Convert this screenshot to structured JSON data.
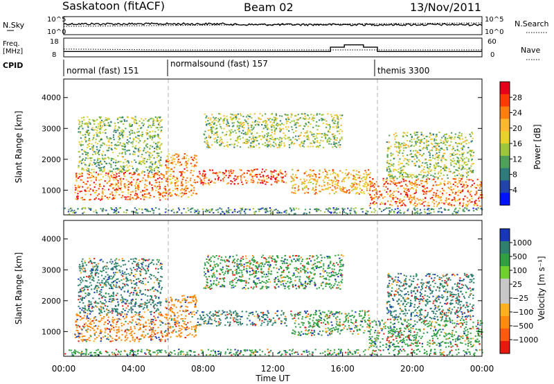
{
  "header": {
    "title": "Saskatoon (fitACF)",
    "beam": "Beam 02",
    "date": "13/Nov/2011"
  },
  "noise_panel": {
    "left_label": "N.Sky",
    "left_ticks": [
      "10^5",
      "10^0"
    ],
    "right_label": "N.Search",
    "right_ticks": [
      "10^5",
      "10^0"
    ]
  },
  "freq_panel": {
    "left_label_line1": "Freq.",
    "left_label_line2": "[MHz]",
    "left_ticks": [
      "18",
      "8"
    ],
    "right_label": "Nave",
    "right_ticks": [
      "60",
      "0"
    ]
  },
  "cpid": {
    "label": "CPID",
    "segments": [
      {
        "name": "normal (fast) 151",
        "start_hour": 0
      },
      {
        "name": "normalsound (fast) 157",
        "start_hour": 6
      },
      {
        "name": "themis 3300",
        "start_hour": 18
      }
    ]
  },
  "power_panel": {
    "ylabel": "Slant Range [km]",
    "colorbar_label": "Power [dB]",
    "colorbar_ticks": [
      "28",
      "24",
      "20",
      "16",
      "12",
      "8",
      "4"
    ],
    "colors": [
      "#e8001a",
      "#ff3a00",
      "#ff7e10",
      "#ffb830",
      "#e6d22a",
      "#9ec53c",
      "#4fa05a",
      "#2f7a7a",
      "#2244aa",
      "#0012ff"
    ]
  },
  "velocity_panel": {
    "ylabel": "Slant Range [km]",
    "colorbar_label": "Velocity [m s⁻¹]",
    "colorbar_ticks": [
      "1000",
      "500",
      "100",
      "25",
      "−25",
      "−100",
      "−500",
      "−1000"
    ],
    "colors": [
      "#1836b8",
      "#2f7f6f",
      "#2fa040",
      "#70d030",
      "#c8c8c8",
      "#c8c8c8",
      "#ffb020",
      "#ff8a10",
      "#ff5a10",
      "#e81a10"
    ]
  },
  "xaxis": {
    "label": "Time UT",
    "ticks": [
      "00:00",
      "04:00",
      "08:00",
      "12:00",
      "16:00",
      "20:00",
      "00:00"
    ]
  },
  "chart_data": {
    "type": "heatmap",
    "x_unit": "hours UT",
    "xlim": [
      0,
      24
    ],
    "ylim_km": [
      200,
      4600
    ],
    "y_ticks": [
      1000,
      2000,
      3000,
      4000
    ],
    "mode_change_hours": [
      6,
      18
    ],
    "freq_mhz": [
      [
        0,
        11.2
      ],
      [
        15.3,
        11.2
      ],
      [
        15.3,
        13.8
      ],
      [
        16.1,
        13.8
      ],
      [
        16.1,
        15.2
      ],
      [
        17.2,
        15.2
      ],
      [
        17.2,
        13.8
      ],
      [
        18.0,
        13.8
      ],
      [
        18.0,
        11.2
      ],
      [
        24,
        11.2
      ]
    ],
    "nave_steps": [
      [
        0,
        28
      ],
      [
        6,
        25
      ],
      [
        24,
        25
      ]
    ],
    "scatter_regions": [
      {
        "t0": 0.6,
        "t1": 6.0,
        "r0": 700,
        "r1": 1600,
        "power": 24,
        "velocity": -100
      },
      {
        "t0": 0.8,
        "t1": 5.6,
        "r0": 1600,
        "r1": 3400,
        "power": 12,
        "velocity": 100
      },
      {
        "t0": 5.8,
        "t1": 7.6,
        "r0": 800,
        "r1": 2200,
        "power": 22,
        "velocity": -100
      },
      {
        "t0": 7.6,
        "t1": 12.8,
        "r0": 1200,
        "r1": 1700,
        "power": 26,
        "velocity": 100
      },
      {
        "t0": 8.0,
        "t1": 16.0,
        "r0": 2400,
        "r1": 3500,
        "power": 14,
        "velocity": 25
      },
      {
        "t0": 13.0,
        "t1": 17.6,
        "r0": 900,
        "r1": 1700,
        "power": 20,
        "velocity": 25
      },
      {
        "t0": 17.5,
        "t1": 24.0,
        "r0": 500,
        "r1": 1400,
        "power": 24,
        "velocity": 25
      },
      {
        "t0": 18.5,
        "t1": 23.5,
        "r0": 1400,
        "r1": 2900,
        "power": 14,
        "velocity": 100
      },
      {
        "t0": 0.0,
        "t1": 24.0,
        "r0": 250,
        "r1": 450,
        "power": 8,
        "velocity": 25
      }
    ]
  }
}
